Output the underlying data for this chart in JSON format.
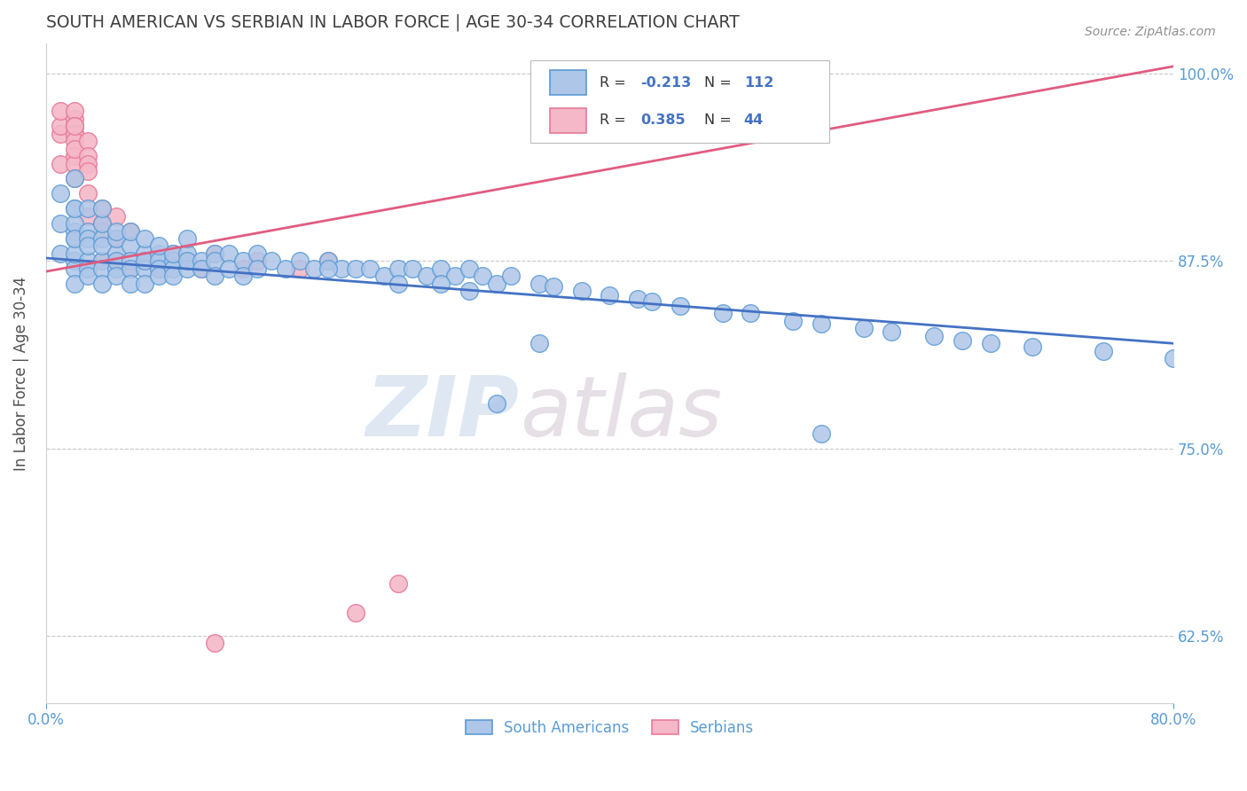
{
  "title": "SOUTH AMERICAN VS SERBIAN IN LABOR FORCE | AGE 30-34 CORRELATION CHART",
  "source_text": "Source: ZipAtlas.com",
  "ylabel": "In Labor Force | Age 30-34",
  "xlim": [
    0.0,
    0.8
  ],
  "ylim": [
    0.58,
    1.02
  ],
  "yticks": [
    0.625,
    0.75,
    0.875,
    1.0
  ],
  "ytick_labels": [
    "62.5%",
    "75.0%",
    "87.5%",
    "100.0%"
  ],
  "blue_color": "#aec6e8",
  "blue_edge_color": "#5b9bd5",
  "pink_color": "#f4b8c8",
  "pink_edge_color": "#e87a9a",
  "blue_line_color": "#4472c4",
  "pink_line_color": "#e05c80",
  "legend_blue_label": "South Americans",
  "legend_pink_label": "Serbians",
  "R_blue": -0.213,
  "N_blue": 112,
  "R_pink": 0.385,
  "N_pink": 44,
  "watermark_zip": "ZIP",
  "watermark_atlas": "atlas",
  "title_color": "#404040",
  "axis_label_color": "#505050",
  "tick_color": "#5b9bd5",
  "grid_color": "#c8c8c8",
  "blue_line_x": [
    0.0,
    0.8
  ],
  "blue_line_y": [
    0.877,
    0.82
  ],
  "pink_line_x": [
    0.0,
    0.8
  ],
  "pink_line_y": [
    0.868,
    1.005
  ],
  "blue_scatter_x": [
    0.01,
    0.01,
    0.01,
    0.02,
    0.02,
    0.02,
    0.02,
    0.02,
    0.02,
    0.02,
    0.02,
    0.02,
    0.02,
    0.02,
    0.03,
    0.03,
    0.03,
    0.03,
    0.03,
    0.03,
    0.03,
    0.04,
    0.04,
    0.04,
    0.04,
    0.04,
    0.04,
    0.04,
    0.05,
    0.05,
    0.05,
    0.05,
    0.05,
    0.05,
    0.06,
    0.06,
    0.06,
    0.06,
    0.06,
    0.07,
    0.07,
    0.07,
    0.07,
    0.07,
    0.08,
    0.08,
    0.08,
    0.08,
    0.08,
    0.09,
    0.09,
    0.09,
    0.09,
    0.1,
    0.1,
    0.1,
    0.1,
    0.11,
    0.11,
    0.12,
    0.12,
    0.12,
    0.13,
    0.13,
    0.14,
    0.14,
    0.15,
    0.15,
    0.16,
    0.17,
    0.18,
    0.19,
    0.2,
    0.21,
    0.22,
    0.23,
    0.24,
    0.25,
    0.26,
    0.27,
    0.28,
    0.29,
    0.3,
    0.31,
    0.32,
    0.33,
    0.35,
    0.36,
    0.38,
    0.4,
    0.42,
    0.43,
    0.45,
    0.48,
    0.5,
    0.53,
    0.55,
    0.58,
    0.6,
    0.63,
    0.65,
    0.67,
    0.7,
    0.75,
    0.8,
    0.55,
    0.32,
    0.28,
    0.35,
    0.2,
    0.25,
    0.3
  ],
  "blue_scatter_y": [
    0.9,
    0.88,
    0.92,
    0.91,
    0.895,
    0.875,
    0.89,
    0.87,
    0.9,
    0.88,
    0.86,
    0.91,
    0.93,
    0.89,
    0.895,
    0.875,
    0.89,
    0.91,
    0.87,
    0.885,
    0.865,
    0.89,
    0.875,
    0.87,
    0.885,
    0.9,
    0.86,
    0.91,
    0.88,
    0.87,
    0.89,
    0.875,
    0.895,
    0.865,
    0.885,
    0.875,
    0.895,
    0.87,
    0.86,
    0.88,
    0.87,
    0.89,
    0.875,
    0.86,
    0.88,
    0.875,
    0.87,
    0.865,
    0.885,
    0.875,
    0.87,
    0.88,
    0.865,
    0.88,
    0.87,
    0.875,
    0.89,
    0.875,
    0.87,
    0.88,
    0.875,
    0.865,
    0.88,
    0.87,
    0.875,
    0.865,
    0.88,
    0.87,
    0.875,
    0.87,
    0.875,
    0.87,
    0.875,
    0.87,
    0.87,
    0.87,
    0.865,
    0.87,
    0.87,
    0.865,
    0.87,
    0.865,
    0.87,
    0.865,
    0.86,
    0.865,
    0.86,
    0.858,
    0.855,
    0.852,
    0.85,
    0.848,
    0.845,
    0.84,
    0.84,
    0.835,
    0.833,
    0.83,
    0.828,
    0.825,
    0.822,
    0.82,
    0.818,
    0.815,
    0.81,
    0.76,
    0.78,
    0.86,
    0.82,
    0.87,
    0.86,
    0.855
  ],
  "pink_scatter_x": [
    0.01,
    0.01,
    0.01,
    0.01,
    0.02,
    0.02,
    0.02,
    0.02,
    0.02,
    0.02,
    0.02,
    0.02,
    0.02,
    0.02,
    0.02,
    0.02,
    0.03,
    0.03,
    0.03,
    0.03,
    0.03,
    0.03,
    0.04,
    0.04,
    0.04,
    0.04,
    0.05,
    0.05,
    0.05,
    0.06,
    0.06,
    0.07,
    0.08,
    0.09,
    0.1,
    0.11,
    0.12,
    0.14,
    0.15,
    0.18,
    0.2,
    0.22,
    0.25,
    0.12
  ],
  "pink_scatter_y": [
    0.96,
    0.94,
    0.965,
    0.975,
    0.965,
    0.97,
    0.96,
    0.975,
    0.965,
    0.96,
    0.955,
    0.945,
    0.94,
    0.95,
    0.93,
    0.965,
    0.955,
    0.945,
    0.94,
    0.935,
    0.92,
    0.905,
    0.91,
    0.9,
    0.895,
    0.875,
    0.905,
    0.89,
    0.875,
    0.895,
    0.87,
    0.875,
    0.87,
    0.88,
    0.875,
    0.87,
    0.88,
    0.87,
    0.875,
    0.87,
    0.875,
    0.64,
    0.66,
    0.62
  ]
}
